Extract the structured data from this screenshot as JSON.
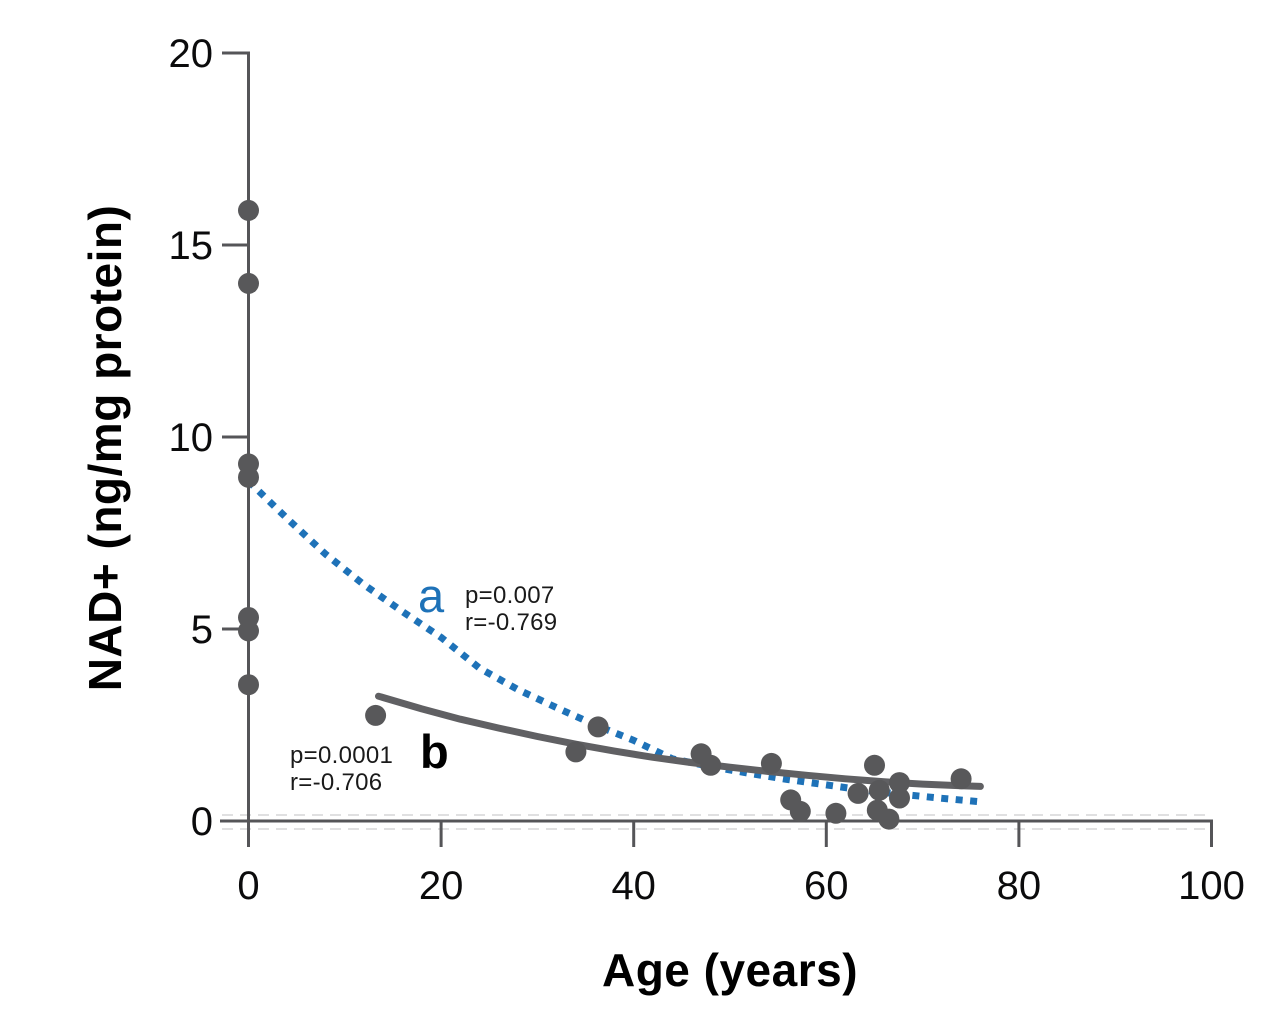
{
  "chart_data": {
    "type": "scatter",
    "title": "",
    "xlabel": "Age (years)",
    "ylabel": "NAD+ (ng/mg protein)",
    "xlim": [
      0,
      100
    ],
    "ylim": [
      0,
      20
    ],
    "x_ticks": [
      0,
      20,
      40,
      60,
      80,
      100
    ],
    "y_ticks": [
      0,
      5,
      10,
      15,
      20
    ],
    "grid": false,
    "legend_position": "none",
    "point_color": "#58585A",
    "axis_color": "#555558",
    "tick_label_color": "#0b0b0c",
    "zero_gridline_color": "#d5d5d7",
    "points": [
      [
        0,
        15.9
      ],
      [
        0,
        14.0
      ],
      [
        0,
        9.3
      ],
      [
        0,
        8.95
      ],
      [
        0,
        5.3
      ],
      [
        0,
        4.95
      ],
      [
        0,
        3.55
      ],
      [
        13.2,
        2.75
      ],
      [
        34.0,
        1.8
      ],
      [
        36.3,
        2.45
      ],
      [
        47.0,
        1.75
      ],
      [
        48.0,
        1.45
      ],
      [
        54.3,
        1.5
      ],
      [
        56.3,
        0.55
      ],
      [
        57.3,
        0.25
      ],
      [
        61.0,
        0.2
      ],
      [
        63.3,
        0.72
      ],
      [
        65.0,
        1.45
      ],
      [
        65.3,
        0.28
      ],
      [
        65.5,
        0.8
      ],
      [
        66.5,
        0.05
      ],
      [
        67.6,
        1.0
      ],
      [
        67.6,
        0.6
      ],
      [
        74.0,
        1.1
      ]
    ],
    "series": [
      {
        "label": "a",
        "kind": "trend-curve",
        "style": "dotted",
        "color": "#1E72B8",
        "p": "p=0.007",
        "r": "r=-0.769",
        "points": [
          [
            0,
            8.85
          ],
          [
            4,
            7.88
          ],
          [
            8,
            6.95
          ],
          [
            12,
            6.15
          ],
          [
            16,
            5.45
          ],
          [
            20,
            4.78
          ],
          [
            24,
            3.98
          ],
          [
            28,
            3.42
          ],
          [
            32,
            2.95
          ],
          [
            36,
            2.5
          ],
          [
            40,
            2.1
          ],
          [
            44,
            1.62
          ],
          [
            48,
            1.42
          ],
          [
            52,
            1.24
          ],
          [
            56,
            1.08
          ],
          [
            60,
            0.94
          ],
          [
            64,
            0.8
          ],
          [
            68,
            0.69
          ],
          [
            72,
            0.59
          ],
          [
            76,
            0.5
          ]
        ]
      },
      {
        "label": "b",
        "kind": "trend-curve",
        "style": "solid",
        "color": "#606063",
        "p": "p=0.0001",
        "r": "r=-0.706",
        "points": [
          [
            13.5,
            3.25
          ],
          [
            18,
            2.92
          ],
          [
            22,
            2.65
          ],
          [
            26,
            2.42
          ],
          [
            30,
            2.2
          ],
          [
            34,
            2.0
          ],
          [
            38,
            1.82
          ],
          [
            42,
            1.66
          ],
          [
            46,
            1.52
          ],
          [
            50,
            1.4
          ],
          [
            54,
            1.29
          ],
          [
            58,
            1.19
          ],
          [
            62,
            1.1
          ],
          [
            66,
            1.02
          ],
          [
            70,
            0.96
          ],
          [
            74,
            0.92
          ],
          [
            76,
            0.9
          ]
        ]
      }
    ]
  }
}
